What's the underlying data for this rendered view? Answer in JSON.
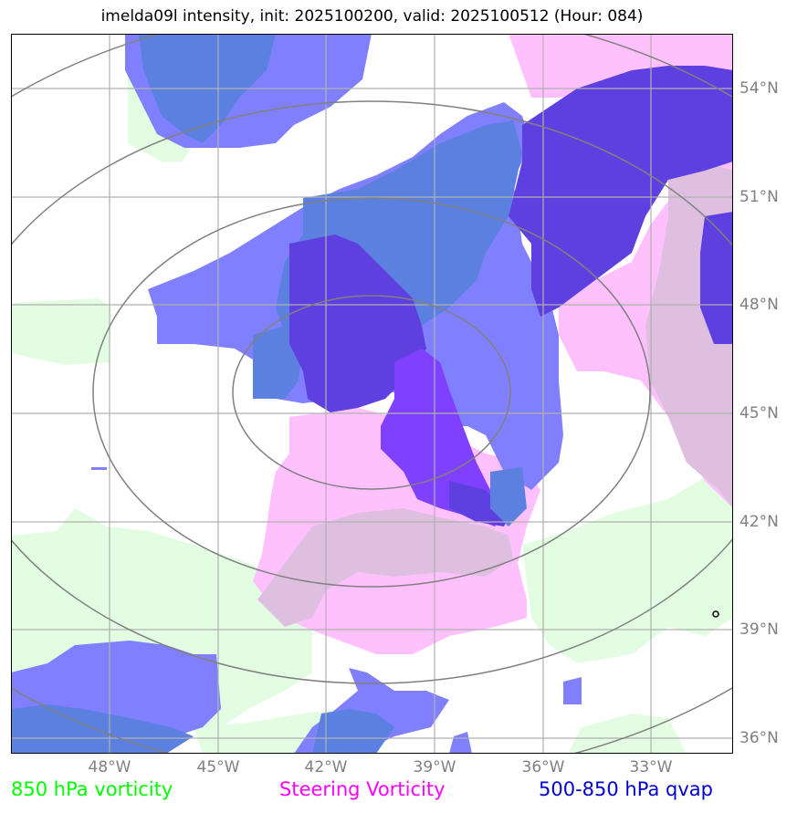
{
  "title": "imelda09l intensity, init: 2025100200, valid: 2025100512 (Hour: 084)",
  "map": {
    "lon_ticks": [
      "48°W",
      "45°W",
      "42°W",
      "39°W",
      "36°W",
      "33°W"
    ],
    "lat_ticks": [
      "54°N",
      "51°N",
      "48°N",
      "45°N",
      "42°N",
      "39°N",
      "36°N"
    ]
  },
  "legend": [
    {
      "label": "850 hPa vorticity",
      "color": "#00ff00"
    },
    {
      "label": "Steering Vorticity",
      "color": "#ff00ff"
    },
    {
      "label": "500-850 hPa qvap",
      "color": "#0000cc"
    }
  ],
  "colors": {
    "vorticity_850": "#e2fde2",
    "steering": "#ffc0fe",
    "steering_overlap": "#dfbfdf",
    "qvap_light": "#8080ff",
    "qvap_mid": "#5c80df",
    "qvap_dark": "#5e40e0",
    "qvap_violet": "#8040ff",
    "grid": "#b0b0b0",
    "range_rings": "#808080"
  }
}
